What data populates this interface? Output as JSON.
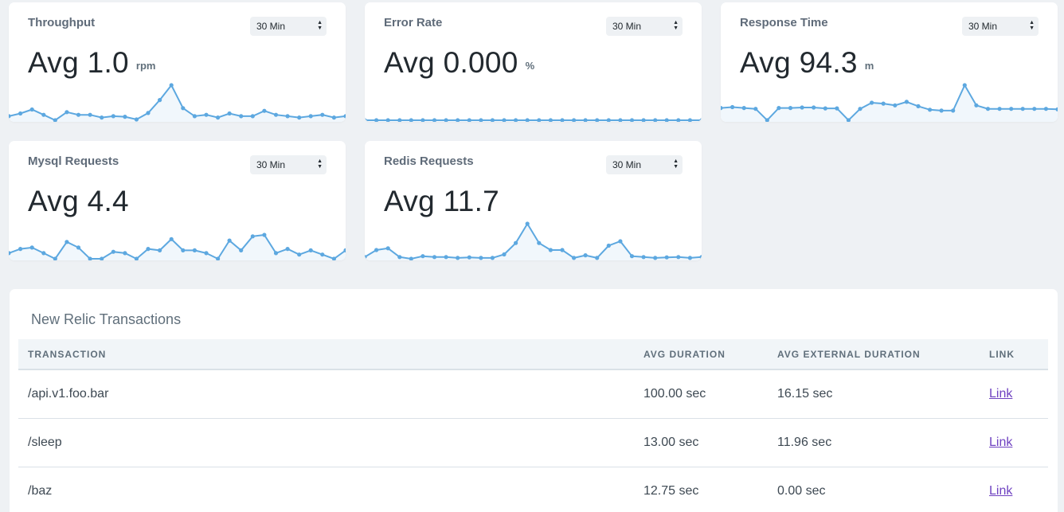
{
  "accent_color": "#5da8e0",
  "fill_color": "#f1f7fc",
  "cards": [
    {
      "title": "Throughput",
      "period": "30 Min",
      "avg": "Avg 1.0",
      "unit": "rpm",
      "series": [
        1.0,
        1.1,
        1.25,
        1.05,
        0.85,
        1.15,
        1.05,
        1.05,
        0.95,
        1.0,
        0.98,
        0.88,
        1.12,
        1.6,
        2.15,
        1.3,
        1.0,
        1.05,
        0.95,
        1.1,
        1.0,
        1.0,
        1.2,
        1.05,
        1.0,
        0.95,
        1.0,
        1.05,
        0.95,
        1.0
      ]
    },
    {
      "title": "Error Rate",
      "period": "30 Min",
      "avg": "Avg 0.000",
      "unit": "%",
      "series": [
        0,
        0,
        0,
        0,
        0,
        0,
        0,
        0,
        0,
        0,
        0,
        0,
        0,
        0,
        0,
        0,
        0,
        0,
        0,
        0,
        0,
        0,
        0,
        0,
        0,
        0,
        0,
        0,
        0,
        0
      ]
    },
    {
      "title": "Response Time",
      "period": "30 Min",
      "avg": "Avg 94.3",
      "unit": "m",
      "series": [
        94,
        95,
        94,
        93,
        80,
        94,
        94,
        94.5,
        94.5,
        93.5,
        93.5,
        80,
        93,
        100,
        99,
        97,
        101,
        96,
        92,
        91,
        91,
        120,
        97,
        93,
        93,
        93,
        93,
        93,
        93,
        92.5
      ]
    },
    {
      "title": "Mysql Requests",
      "period": "30 Min",
      "avg": "Avg 4.4",
      "unit": "",
      "series": [
        4.2,
        4.35,
        4.4,
        4.2,
        4.0,
        4.6,
        4.4,
        4.0,
        4.0,
        4.25,
        4.2,
        4.0,
        4.35,
        4.3,
        4.7,
        4.3,
        4.3,
        4.2,
        4.0,
        4.65,
        4.3,
        4.8,
        4.85,
        4.2,
        4.35,
        4.15,
        4.3,
        4.15,
        4.0,
        4.3
      ]
    },
    {
      "title": "Redis Requests",
      "period": "30 Min",
      "avg": "Avg 11.7",
      "unit": "",
      "series": [
        11.4,
        11.8,
        11.9,
        11.4,
        11.3,
        11.45,
        11.4,
        11.4,
        11.35,
        11.38,
        11.35,
        11.35,
        11.55,
        12.2,
        13.3,
        12.2,
        11.8,
        11.8,
        11.35,
        11.5,
        11.35,
        12.05,
        12.3,
        11.45,
        11.4,
        11.35,
        11.38,
        11.4,
        11.35,
        11.4
      ]
    }
  ],
  "transactions": {
    "title": "New Relic Transactions",
    "headers": [
      "TRANSACTION",
      "AVG DURATION",
      "AVG EXTERNAL DURATION",
      "LINK"
    ],
    "rows": [
      {
        "name": "/api.v1.foo.bar",
        "avg_duration": "100.00 sec",
        "avg_external": "16.15 sec",
        "link": "Link"
      },
      {
        "name": "/sleep",
        "avg_duration": "13.00 sec",
        "avg_external": "11.96 sec",
        "link": "Link"
      },
      {
        "name": "/baz",
        "avg_duration": "12.75 sec",
        "avg_external": "0.00 sec",
        "link": "Link"
      }
    ]
  }
}
